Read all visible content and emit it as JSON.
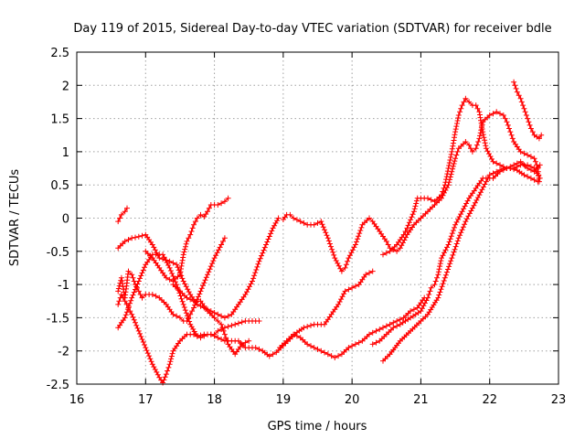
{
  "chart_data": {
    "type": "scatter",
    "title": "Day 119 of 2015, Sidereal Day-to-day VTEC variation (SDTVAR) for receiver bdle",
    "xlabel": "GPS time / hours",
    "ylabel": "SDTVAR / TECUs",
    "xlim": [
      16,
      23
    ],
    "ylim": [
      -2.5,
      2.5
    ],
    "xticks": [
      "16",
      "17",
      "18",
      "19",
      "20",
      "21",
      "22",
      "23"
    ],
    "yticks": [
      "2.5",
      "2",
      "1.5",
      "1",
      "0.5",
      "0",
      "-0.5",
      "-1",
      "-1.5",
      "-2",
      "-2.5"
    ],
    "grid": true,
    "marker": "+",
    "color": "#ff0000",
    "series": [
      {
        "points": [
          [
            16.6,
            -0.05
          ],
          [
            16.65,
            0.05
          ],
          [
            16.7,
            0.1
          ],
          [
            16.73,
            0.15
          ]
        ]
      },
      {
        "points": [
          [
            16.6,
            -0.45
          ],
          [
            16.7,
            -0.35
          ],
          [
            16.8,
            -0.3
          ],
          [
            16.9,
            -0.28
          ],
          [
            17.0,
            -0.25
          ],
          [
            17.1,
            -0.4
          ],
          [
            17.2,
            -0.6
          ],
          [
            17.35,
            -0.65
          ],
          [
            17.45,
            -0.7
          ],
          [
            17.55,
            -0.95
          ],
          [
            17.65,
            -1.15
          ],
          [
            17.75,
            -1.3
          ],
          [
            17.85,
            -1.35
          ],
          [
            17.95,
            -1.4
          ],
          [
            18.05,
            -1.45
          ],
          [
            18.15,
            -1.5
          ],
          [
            18.25,
            -1.45
          ],
          [
            18.35,
            -1.3
          ],
          [
            18.45,
            -1.15
          ],
          [
            18.55,
            -0.95
          ],
          [
            18.65,
            -0.65
          ],
          [
            18.75,
            -0.4
          ],
          [
            18.85,
            -0.15
          ],
          [
            18.93,
            0.0
          ]
        ]
      },
      {
        "points": [
          [
            16.6,
            -1.65
          ],
          [
            16.7,
            -1.5
          ],
          [
            16.8,
            -1.2
          ],
          [
            16.9,
            -0.95
          ],
          [
            17.0,
            -0.7
          ],
          [
            17.1,
            -0.55
          ],
          [
            17.25,
            -0.55
          ],
          [
            17.35,
            -0.75
          ],
          [
            17.45,
            -1.0
          ],
          [
            17.55,
            -1.3
          ],
          [
            17.65,
            -1.6
          ],
          [
            17.75,
            -1.78
          ],
          [
            17.85,
            -1.75
          ],
          [
            17.95,
            -1.75
          ],
          [
            18.05,
            -1.8
          ],
          [
            18.15,
            -1.85
          ],
          [
            18.25,
            -1.85
          ],
          [
            18.35,
            -1.85
          ],
          [
            18.45,
            -1.95
          ],
          [
            18.6,
            -1.95
          ],
          [
            18.7,
            -2.0
          ],
          [
            18.8,
            -2.08
          ],
          [
            18.9,
            -2.02
          ],
          [
            19.0,
            -1.92
          ],
          [
            19.1,
            -1.82
          ],
          [
            19.2,
            -1.72
          ],
          [
            19.3,
            -1.65
          ],
          [
            19.45,
            -1.6
          ],
          [
            19.6,
            -1.6
          ],
          [
            19.7,
            -1.45
          ],
          [
            19.8,
            -1.3
          ],
          [
            19.9,
            -1.1
          ],
          [
            20.0,
            -1.05
          ],
          [
            20.1,
            -1.0
          ],
          [
            20.2,
            -0.85
          ],
          [
            20.3,
            -0.8
          ]
        ]
      },
      {
        "points": [
          [
            16.6,
            -1.1
          ],
          [
            16.65,
            -0.9
          ],
          [
            16.7,
            -1.2
          ],
          [
            16.75,
            -0.8
          ],
          [
            16.8,
            -0.85
          ],
          [
            16.85,
            -1.0
          ],
          [
            16.9,
            -1.1
          ],
          [
            16.95,
            -1.2
          ],
          [
            17.0,
            -1.15
          ],
          [
            17.1,
            -1.15
          ],
          [
            17.2,
            -1.2
          ],
          [
            17.3,
            -1.3
          ],
          [
            17.4,
            -1.45
          ],
          [
            17.5,
            -1.5
          ],
          [
            17.55,
            -1.55
          ],
          [
            17.6,
            -1.55
          ],
          [
            17.65,
            -1.45
          ],
          [
            17.7,
            -1.35
          ],
          [
            17.8,
            -1.1
          ],
          [
            17.9,
            -0.85
          ],
          [
            18.0,
            -0.6
          ],
          [
            18.1,
            -0.4
          ],
          [
            18.15,
            -0.3
          ]
        ]
      },
      {
        "points": [
          [
            16.6,
            -1.3
          ],
          [
            16.65,
            -1.15
          ],
          [
            16.7,
            -1.25
          ],
          [
            16.75,
            -1.35
          ],
          [
            16.8,
            -1.45
          ],
          [
            16.9,
            -1.7
          ],
          [
            17.0,
            -1.95
          ],
          [
            17.1,
            -2.2
          ],
          [
            17.2,
            -2.4
          ],
          [
            17.25,
            -2.48
          ],
          [
            17.3,
            -2.35
          ],
          [
            17.35,
            -2.2
          ],
          [
            17.4,
            -2.0
          ],
          [
            17.5,
            -1.85
          ],
          [
            17.6,
            -1.75
          ],
          [
            17.7,
            -1.75
          ],
          [
            17.8,
            -1.8
          ],
          [
            17.9,
            -1.75
          ],
          [
            18.0,
            -1.75
          ],
          [
            18.05,
            -1.7
          ],
          [
            18.15,
            -1.65
          ],
          [
            18.3,
            -1.6
          ],
          [
            18.45,
            -1.55
          ],
          [
            18.55,
            -1.55
          ],
          [
            18.65,
            -1.55
          ]
        ]
      },
      {
        "points": [
          [
            17.0,
            -0.5
          ],
          [
            17.1,
            -0.6
          ],
          [
            17.2,
            -0.75
          ],
          [
            17.3,
            -0.9
          ],
          [
            17.4,
            -0.95
          ],
          [
            17.5,
            -0.85
          ],
          [
            17.55,
            -0.55
          ],
          [
            17.6,
            -0.35
          ],
          [
            17.65,
            -0.25
          ],
          [
            17.7,
            -0.1
          ],
          [
            17.75,
            0.0
          ],
          [
            17.8,
            0.05
          ],
          [
            17.85,
            0.02
          ],
          [
            17.9,
            0.1
          ],
          [
            17.95,
            0.2
          ],
          [
            18.05,
            0.2
          ],
          [
            18.15,
            0.25
          ],
          [
            18.2,
            0.3
          ]
        ]
      },
      {
        "points": [
          [
            17.4,
            -1.0
          ],
          [
            17.5,
            -1.1
          ],
          [
            17.6,
            -1.2
          ],
          [
            17.7,
            -1.25
          ],
          [
            17.8,
            -1.25
          ],
          [
            17.9,
            -1.4
          ],
          [
            18.0,
            -1.5
          ],
          [
            18.05,
            -1.55
          ],
          [
            18.1,
            -1.6
          ],
          [
            18.15,
            -1.75
          ],
          [
            18.2,
            -1.9
          ],
          [
            18.3,
            -2.05
          ],
          [
            18.4,
            -1.9
          ],
          [
            18.5,
            -1.85
          ]
        ]
      },
      {
        "points": [
          [
            19.0,
            -0.02
          ],
          [
            19.05,
            0.05
          ],
          [
            19.1,
            0.05
          ],
          [
            19.15,
            0.0
          ],
          [
            19.25,
            -0.05
          ],
          [
            19.35,
            -0.1
          ],
          [
            19.45,
            -0.1
          ],
          [
            19.55,
            -0.05
          ],
          [
            19.65,
            -0.3
          ],
          [
            19.75,
            -0.6
          ],
          [
            19.85,
            -0.8
          ],
          [
            19.9,
            -0.75
          ],
          [
            19.95,
            -0.6
          ],
          [
            20.05,
            -0.4
          ],
          [
            20.15,
            -0.1
          ],
          [
            20.25,
            0.0
          ],
          [
            20.3,
            -0.05
          ],
          [
            20.4,
            -0.2
          ],
          [
            20.5,
            -0.35
          ],
          [
            20.55,
            -0.45
          ],
          [
            20.65,
            -0.5
          ],
          [
            20.7,
            -0.45
          ],
          [
            20.8,
            -0.25
          ],
          [
            20.9,
            -0.1
          ],
          [
            21.0,
            0.0
          ],
          [
            21.1,
            0.1
          ],
          [
            21.2,
            0.2
          ],
          [
            21.3,
            0.3
          ],
          [
            21.4,
            0.5
          ],
          [
            21.45,
            0.7
          ],
          [
            21.5,
            0.9
          ],
          [
            21.55,
            1.05
          ],
          [
            21.65,
            1.15
          ],
          [
            21.7,
            1.1
          ],
          [
            21.75,
            1.0
          ],
          [
            21.8,
            1.05
          ],
          [
            21.85,
            1.2
          ],
          [
            21.9,
            1.45
          ],
          [
            22.0,
            1.55
          ],
          [
            22.1,
            1.6
          ],
          [
            22.2,
            1.55
          ],
          [
            22.25,
            1.45
          ],
          [
            22.3,
            1.3
          ],
          [
            22.35,
            1.15
          ],
          [
            22.45,
            1.0
          ],
          [
            22.55,
            0.95
          ],
          [
            22.65,
            0.9
          ],
          [
            22.7,
            0.75
          ],
          [
            22.72,
            0.55
          ]
        ]
      },
      {
        "points": [
          [
            20.45,
            -0.55
          ],
          [
            20.55,
            -0.5
          ],
          [
            20.65,
            -0.4
          ],
          [
            20.75,
            -0.25
          ],
          [
            20.8,
            -0.15
          ],
          [
            20.9,
            0.1
          ],
          [
            20.95,
            0.3
          ],
          [
            21.0,
            0.3
          ],
          [
            21.1,
            0.3
          ],
          [
            21.2,
            0.25
          ],
          [
            21.3,
            0.35
          ],
          [
            21.35,
            0.5
          ],
          [
            21.4,
            0.75
          ],
          [
            21.45,
            1.0
          ],
          [
            21.5,
            1.3
          ],
          [
            21.55,
            1.55
          ],
          [
            21.6,
            1.7
          ],
          [
            21.65,
            1.8
          ],
          [
            21.7,
            1.75
          ],
          [
            21.75,
            1.7
          ],
          [
            21.8,
            1.7
          ],
          [
            21.85,
            1.6
          ],
          [
            21.9,
            1.3
          ],
          [
            21.95,
            1.05
          ],
          [
            22.05,
            0.85
          ],
          [
            22.15,
            0.8
          ],
          [
            22.25,
            0.75
          ],
          [
            22.35,
            0.75
          ],
          [
            22.45,
            0.8
          ],
          [
            22.55,
            0.8
          ],
          [
            22.65,
            0.75
          ],
          [
            22.73,
            0.6
          ]
        ]
      },
      {
        "points": [
          [
            20.3,
            -1.9
          ],
          [
            20.4,
            -1.85
          ],
          [
            20.5,
            -1.75
          ],
          [
            20.6,
            -1.65
          ],
          [
            20.7,
            -1.6
          ],
          [
            20.85,
            -1.5
          ],
          [
            21.0,
            -1.4
          ],
          [
            21.1,
            -1.2
          ],
          [
            21.15,
            -1.05
          ],
          [
            21.2,
            -1.0
          ],
          [
            21.25,
            -0.85
          ],
          [
            21.3,
            -0.6
          ],
          [
            21.4,
            -0.4
          ],
          [
            21.5,
            -0.1
          ],
          [
            21.6,
            0.1
          ],
          [
            21.7,
            0.3
          ],
          [
            21.8,
            0.45
          ],
          [
            21.9,
            0.6
          ],
          [
            21.95,
            0.6
          ],
          [
            22.05,
            0.6
          ],
          [
            22.15,
            0.7
          ],
          [
            22.25,
            0.75
          ],
          [
            22.35,
            0.8
          ],
          [
            22.45,
            0.85
          ],
          [
            22.55,
            0.75
          ],
          [
            22.65,
            0.7
          ],
          [
            22.73,
            0.8
          ]
        ]
      },
      {
        "points": [
          [
            20.45,
            -2.15
          ],
          [
            20.55,
            -2.05
          ],
          [
            20.7,
            -1.85
          ],
          [
            20.85,
            -1.7
          ],
          [
            21.0,
            -1.55
          ],
          [
            21.1,
            -1.45
          ],
          [
            21.25,
            -1.2
          ],
          [
            21.35,
            -0.9
          ],
          [
            21.45,
            -0.6
          ],
          [
            21.55,
            -0.3
          ],
          [
            21.65,
            -0.05
          ],
          [
            21.75,
            0.15
          ],
          [
            21.85,
            0.35
          ],
          [
            21.95,
            0.55
          ],
          [
            22.0,
            0.65
          ],
          [
            22.1,
            0.7
          ],
          [
            22.2,
            0.75
          ],
          [
            22.3,
            0.75
          ],
          [
            22.4,
            0.72
          ],
          [
            22.5,
            0.65
          ],
          [
            22.6,
            0.6
          ],
          [
            22.7,
            0.55
          ]
        ]
      },
      {
        "points": [
          [
            22.35,
            2.05
          ],
          [
            22.4,
            1.9
          ],
          [
            22.45,
            1.8
          ],
          [
            22.5,
            1.65
          ],
          [
            22.55,
            1.5
          ],
          [
            22.6,
            1.35
          ],
          [
            22.65,
            1.25
          ],
          [
            22.72,
            1.2
          ],
          [
            22.75,
            1.25
          ]
        ]
      },
      {
        "points": [
          [
            18.95,
            -1.95
          ],
          [
            19.05,
            -1.85
          ],
          [
            19.15,
            -1.75
          ],
          [
            19.25,
            -1.8
          ],
          [
            19.35,
            -1.9
          ],
          [
            19.45,
            -1.95
          ],
          [
            19.55,
            -2.0
          ],
          [
            19.65,
            -2.05
          ],
          [
            19.75,
            -2.1
          ],
          [
            19.85,
            -2.05
          ],
          [
            19.95,
            -1.95
          ],
          [
            20.05,
            -1.9
          ],
          [
            20.15,
            -1.85
          ],
          [
            20.25,
            -1.75
          ],
          [
            20.35,
            -1.7
          ],
          [
            20.45,
            -1.65
          ],
          [
            20.55,
            -1.6
          ],
          [
            20.65,
            -1.55
          ],
          [
            20.75,
            -1.5
          ],
          [
            20.85,
            -1.4
          ],
          [
            20.95,
            -1.35
          ],
          [
            21.05,
            -1.2
          ]
        ]
      }
    ]
  }
}
